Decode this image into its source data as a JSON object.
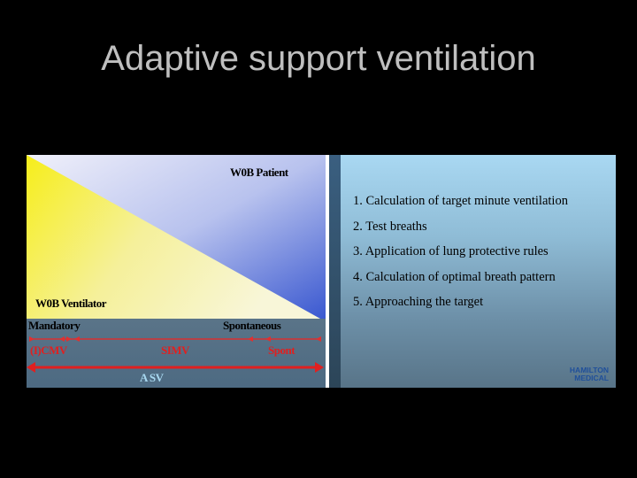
{
  "title": "Adaptive support ventilation",
  "diagram": {
    "wob_patient": "W0B Patient",
    "wob_ventilator": "W0B Ventilator",
    "mandatory": "Mandatory",
    "spontaneous": "Spontaneous",
    "cmv": "(I)CMV",
    "simv": "SIMV",
    "spont": "Spont",
    "asv": "A SV",
    "colors": {
      "ventilator": "#f5f04a",
      "patient": "#5a70d8",
      "band": "#556f86",
      "arrows": "#e02020",
      "asv": "#a8d8f0"
    }
  },
  "steps": [
    "1.  Calculation of target minute ventilation",
    "2.  Test breaths",
    "3.  Application of lung protective rules",
    "4.  Calculation of optimal breath pattern",
    "5.  Approaching the target"
  ],
  "logo": {
    "line1": "HAMILTON",
    "line2": "MEDICAL"
  }
}
